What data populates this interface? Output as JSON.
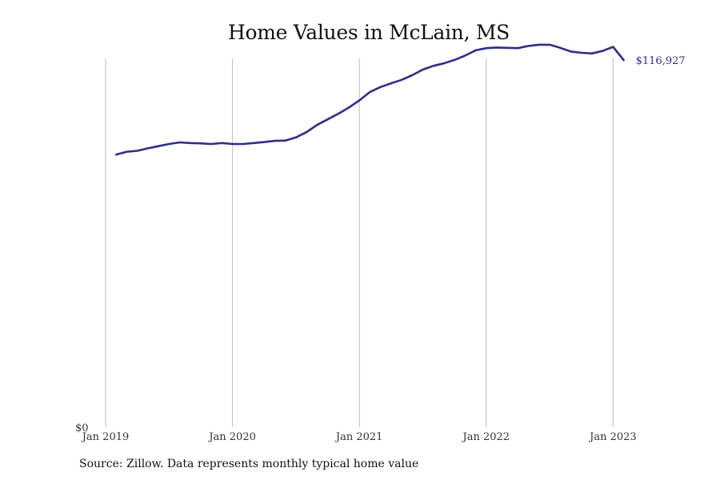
{
  "chart_data": {
    "type": "line",
    "title": "Home Values in McLain, MS",
    "xlabel": "",
    "ylabel": "",
    "x_tick_labels": [
      "Jan 2019",
      "Jan 2020",
      "Jan 2021",
      "Jan 2022",
      "Jan 2023"
    ],
    "x_range": [
      "2019-01",
      "2023-04"
    ],
    "y_tick_labels": [
      "$0"
    ],
    "ylim": [
      0,
      117500
    ],
    "grid": "vertical",
    "series": [
      {
        "color": "#2e2e8a",
        "x": [
          "2019-02",
          "2019-03",
          "2019-04",
          "2019-05",
          "2019-06",
          "2019-07",
          "2019-08",
          "2019-09",
          "2019-10",
          "2019-11",
          "2019-12",
          "2020-01",
          "2020-02",
          "2020-03",
          "2020-04",
          "2020-05",
          "2020-06",
          "2020-07",
          "2020-08",
          "2020-09",
          "2020-10",
          "2020-11",
          "2020-12",
          "2021-01",
          "2021-02",
          "2021-03",
          "2021-04",
          "2021-05",
          "2021-06",
          "2021-07",
          "2021-08",
          "2021-09",
          "2021-10",
          "2021-11",
          "2021-12",
          "2022-01",
          "2022-02",
          "2022-03",
          "2022-04",
          "2022-05",
          "2022-06",
          "2022-07",
          "2022-08",
          "2022-09",
          "2022-10",
          "2022-11",
          "2022-12",
          "2023-01",
          "2023-02"
        ],
        "y": [
          86600,
          87500,
          87800,
          88600,
          89300,
          90000,
          90500,
          90300,
          90200,
          90000,
          90300,
          90000,
          90000,
          90300,
          90600,
          91000,
          91100,
          92100,
          93800,
          96100,
          97900,
          99700,
          101700,
          104000,
          106700,
          108300,
          109500,
          110600,
          112100,
          113900,
          115100,
          115900,
          117000,
          118400,
          120100,
          120800,
          121000,
          120900,
          120800,
          121500,
          121900,
          121900,
          120900,
          119700,
          119300,
          119100,
          119900,
          121200,
          116927
        ]
      }
    ],
    "annotations": [
      {
        "label": "$116,927",
        "x": "2023-02"
      }
    ]
  },
  "footer": {
    "source": "Source: Zillow. Data represents monthly typical home value"
  }
}
